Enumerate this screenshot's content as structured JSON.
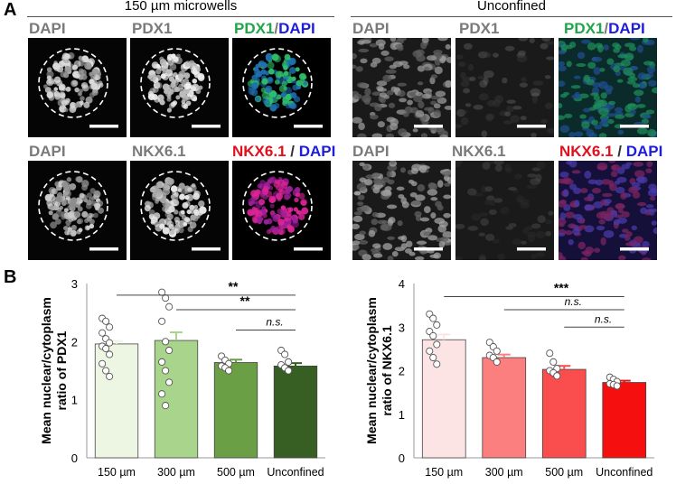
{
  "figure": {
    "panel_a": "A",
    "panel_b": "B",
    "groups": {
      "microwells": "150 µm microwells",
      "unconfined": "Unconfined"
    },
    "labels": {
      "dapi": "DAPI",
      "pdx1": "PDX1",
      "nkx61": "NKX6.1",
      "slash": "/",
      "slash_spaced": " / "
    },
    "colors": {
      "dapi_blue": "#1d1ddb",
      "pdx1_green": "#1fa64a",
      "nkx_red": "#e0101c",
      "gray_label": "#7a7a7a"
    }
  },
  "chart_data": [
    {
      "type": "bar",
      "ylabel": "Mean nuclear/cytoplasm ratio of PDX1",
      "categories": [
        "150 µm",
        "300 µm",
        "500 µm",
        "Unconfined"
      ],
      "values": [
        1.96,
        2.02,
        1.64,
        1.58
      ],
      "errors": [
        0.05,
        0.14,
        0.05,
        0.05
      ],
      "colors": [
        "#edf6e2",
        "#a8d48b",
        "#6a9f46",
        "#375f23"
      ],
      "points": [
        [
          2.4,
          2.35,
          2.25,
          2.15,
          2.05,
          1.98,
          1.92,
          1.88,
          1.78,
          1.62,
          1.5,
          1.4
        ],
        [
          2.85,
          2.75,
          2.6,
          2.35,
          2.0,
          1.85,
          1.65,
          1.5,
          1.3,
          1.1,
          0.9
        ],
        [
          1.75,
          1.68,
          1.62,
          1.58,
          1.55,
          1.5
        ],
        [
          1.85,
          1.78,
          1.65,
          1.6,
          1.55,
          1.5
        ]
      ],
      "ylim": [
        0,
        3
      ],
      "yticks": [
        "0",
        "1",
        "2",
        "3"
      ],
      "ytick_values": [
        0,
        1,
        2,
        3
      ],
      "significance": [
        {
          "from": 0,
          "to": 3,
          "label": "**",
          "y": 2.8
        },
        {
          "from": 1,
          "to": 3,
          "label": "**",
          "y": 2.55
        },
        {
          "from": 2,
          "to": 3,
          "label": "n.s.",
          "y": 2.2
        }
      ]
    },
    {
      "type": "bar",
      "ylabel": "Mean nuclear/cytoplasm ratio of NKX6.1",
      "categories": [
        "150 µm",
        "300 µm",
        "500 µm",
        "Unconfined"
      ],
      "values": [
        2.71,
        2.3,
        2.03,
        1.73
      ],
      "errors": [
        0.12,
        0.07,
        0.08,
        0.04
      ],
      "colors": [
        "#fde4e4",
        "#fb7f7f",
        "#fa4d4d",
        "#f50f0f"
      ],
      "points": [
        [
          3.3,
          3.2,
          3.05,
          2.9,
          2.8,
          2.6,
          2.45,
          2.3,
          2.15
        ],
        [
          2.65,
          2.55,
          2.45,
          2.35,
          2.3,
          2.2
        ],
        [
          2.4,
          2.2,
          2.05,
          2.0,
          1.95,
          1.88
        ],
        [
          1.85,
          1.8,
          1.75,
          1.7,
          1.68,
          1.65
        ]
      ],
      "ylim": [
        0,
        4
      ],
      "yticks": [
        "0",
        "1",
        "2",
        "3",
        "4"
      ],
      "ytick_values": [
        0,
        1,
        2,
        3,
        4
      ],
      "significance": [
        {
          "from": 0,
          "to": 3,
          "label": "***",
          "y": 3.7
        },
        {
          "from": 1,
          "to": 3,
          "label": "n.s.",
          "y": 3.4
        },
        {
          "from": 2,
          "to": 3,
          "label": "n.s.",
          "y": 3.0
        }
      ]
    }
  ]
}
